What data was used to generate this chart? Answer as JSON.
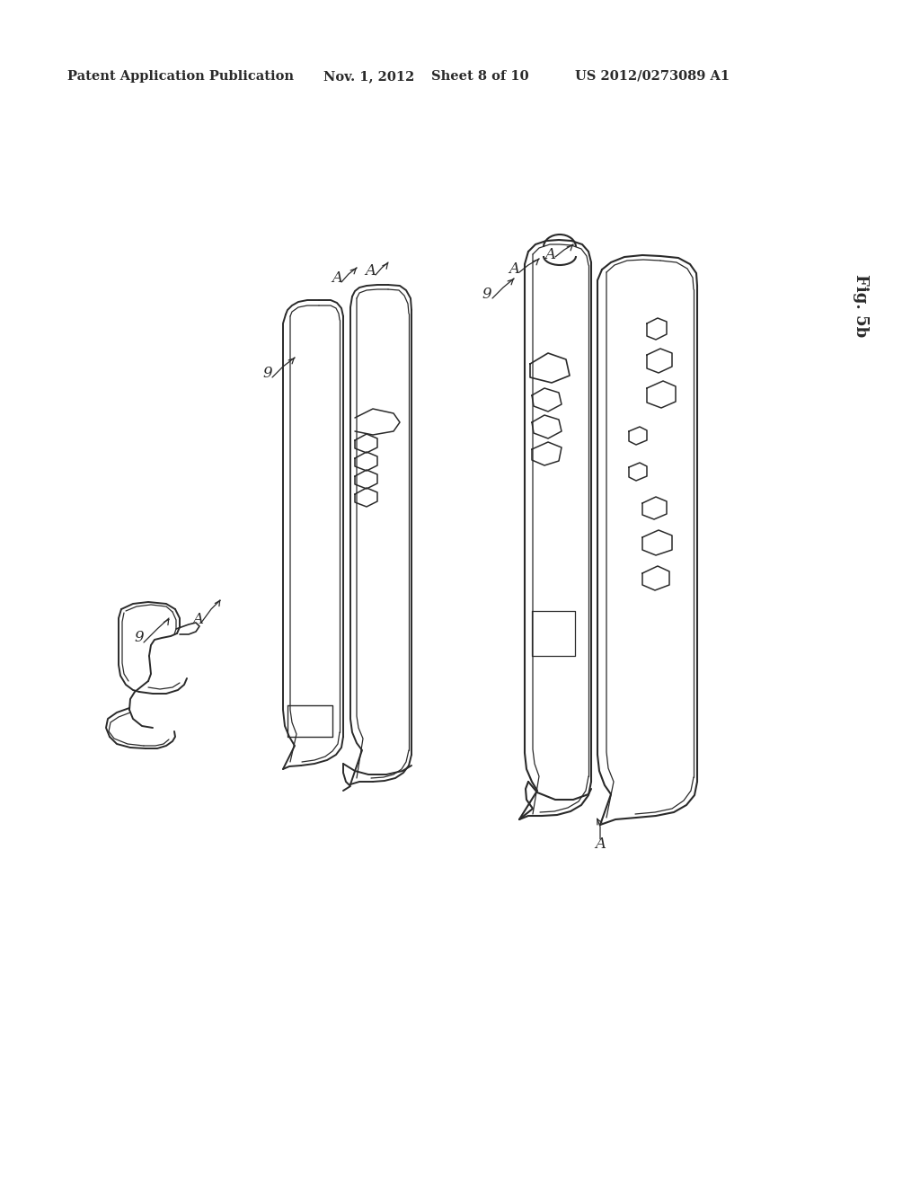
{
  "bg_color": "#ffffff",
  "line_color": "#2a2a2a",
  "header_text": "Patent Application Publication",
  "header_date": "Nov. 1, 2012",
  "header_sheet": "Sheet 8 of 10",
  "header_patent": "US 2012/0273089 A1",
  "figure_label": "Fig. 5b"
}
